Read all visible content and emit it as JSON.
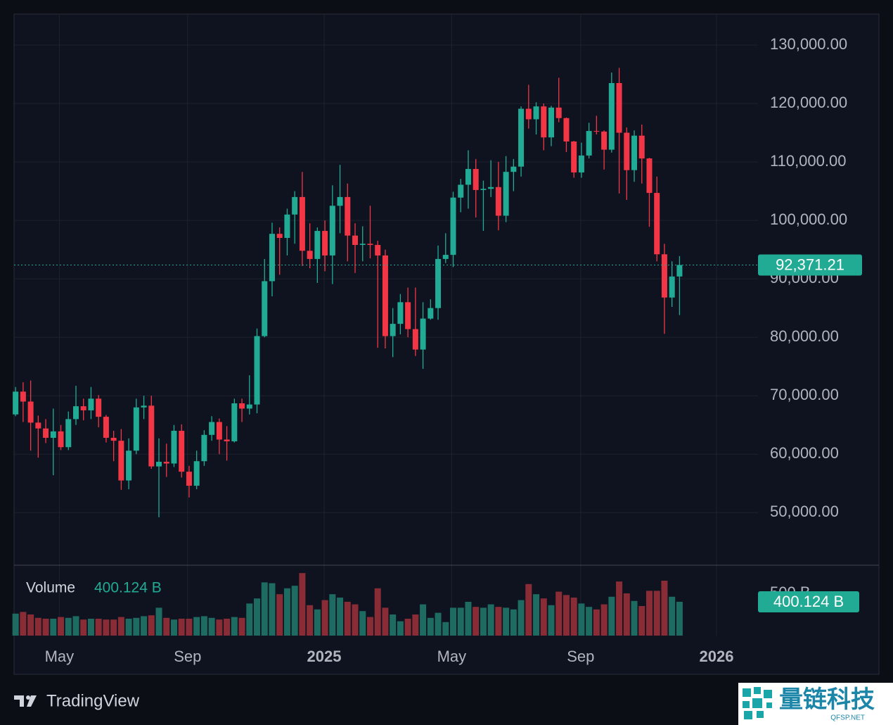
{
  "chart_data": {
    "type": "candlestick",
    "x": [
      0,
      1,
      2,
      3,
      4,
      5,
      6,
      7,
      8,
      9,
      10,
      11,
      12,
      13,
      14,
      15,
      16,
      17,
      18,
      19,
      20,
      21,
      22,
      23,
      24,
      25,
      26,
      27,
      28,
      29,
      30,
      31,
      32,
      33,
      34,
      35,
      36,
      37,
      38,
      39,
      40,
      41,
      42,
      43,
      44,
      45,
      46,
      47,
      48,
      49,
      50,
      51,
      52,
      53,
      54,
      55,
      56,
      57,
      58,
      59,
      60,
      61,
      62,
      63,
      64,
      65,
      66,
      67,
      68,
      69,
      70,
      71,
      72,
      73,
      74,
      75,
      76,
      77,
      78,
      79,
      80,
      81,
      82,
      83,
      84,
      85,
      86,
      87,
      88
    ],
    "open": [
      66800,
      70700,
      69000,
      65400,
      64400,
      62800,
      63900,
      61200,
      66000,
      68200,
      67500,
      69500,
      66400,
      62800,
      62300,
      55500,
      60600,
      68000,
      68300,
      57900,
      58700,
      58400,
      64000,
      57000,
      54600,
      58800,
      63300,
      65500,
      62500,
      62200,
      68700,
      67800,
      68500,
      80200,
      89600,
      97700,
      97000,
      101000,
      104000,
      94800,
      93400,
      98200,
      94000,
      102500,
      104000,
      97400,
      95800,
      96000,
      95800,
      94000,
      80200,
      82300,
      86000,
      81400,
      77900,
      83200,
      85000,
      93400,
      94100,
      103900,
      106100,
      108800,
      105200,
      105400,
      105700,
      100800,
      108300,
      109200,
      119100,
      117300,
      119500,
      114200,
      119300,
      117500,
      113500,
      108200,
      111100,
      115300,
      115200,
      112100,
      123500,
      115000,
      108600,
      114500,
      110600,
      104700,
      94200,
      86800,
      90400
    ],
    "high": [
      71500,
      72300,
      72600,
      66600,
      66000,
      67800,
      65000,
      67300,
      71700,
      69500,
      71500,
      70100,
      66700,
      64000,
      64300,
      62700,
      69500,
      70000,
      70000,
      62700,
      61800,
      65000,
      65100,
      58000,
      60600,
      64100,
      66500,
      66100,
      64800,
      69500,
      69500,
      73500,
      81500,
      93400,
      99600,
      98800,
      102000,
      105000,
      108300,
      99500,
      98800,
      100000,
      106000,
      109500,
      106300,
      99500,
      99000,
      102500,
      96500,
      95000,
      85000,
      87400,
      88500,
      88500,
      86000,
      86500,
      95700,
      97800,
      104900,
      107100,
      112000,
      110500,
      106800,
      110300,
      110000,
      111000,
      110500,
      119500,
      123200,
      120200,
      120000,
      119600,
      124400,
      117600,
      113600,
      113300,
      116700,
      117900,
      115400,
      125300,
      126100,
      115900,
      115400,
      116400,
      110700,
      107500,
      96000,
      93000,
      93900
    ],
    "low": [
      66500,
      65500,
      60600,
      59400,
      61900,
      56400,
      60700,
      60700,
      65000,
      65800,
      66000,
      64600,
      62000,
      58800,
      53900,
      54000,
      60000,
      66000,
      57500,
      49200,
      56100,
      57800,
      56000,
      52600,
      54000,
      58000,
      62300,
      60000,
      58900,
      62000,
      65500,
      66800,
      67000,
      80000,
      87000,
      90700,
      94000,
      96000,
      92200,
      91800,
      89300,
      91300,
      89100,
      97800,
      93000,
      91000,
      93000,
      93500,
      78200,
      78100,
      76600,
      80500,
      80000,
      76800,
      74600,
      83000,
      83000,
      92700,
      92000,
      101400,
      102000,
      100500,
      98200,
      104000,
      98300,
      99700,
      105000,
      107500,
      115700,
      114700,
      112000,
      112700,
      116800,
      111700,
      107300,
      107300,
      110600,
      114700,
      108700,
      111600,
      104600,
      103500,
      106600,
      106300,
      98900,
      93000,
      80600,
      85200,
      83800
    ],
    "close": [
      70700,
      69000,
      65400,
      64400,
      62800,
      63900,
      61200,
      66000,
      68200,
      67500,
      69500,
      66400,
      62800,
      62300,
      55500,
      60600,
      68000,
      68300,
      57900,
      58700,
      58400,
      64000,
      57000,
      54600,
      58800,
      63300,
      65500,
      62500,
      62200,
      68700,
      67800,
      68500,
      80200,
      89600,
      97700,
      97000,
      101000,
      104000,
      94800,
      93400,
      98200,
      94000,
      102500,
      104000,
      97400,
      95800,
      96000,
      95800,
      94000,
      80200,
      82300,
      86000,
      81400,
      77900,
      83200,
      85000,
      93400,
      94100,
      103900,
      106100,
      108800,
      105200,
      105400,
      105700,
      100800,
      108300,
      109200,
      119100,
      117300,
      119500,
      114200,
      119300,
      117500,
      113500,
      108200,
      111100,
      115300,
      115200,
      112100,
      123500,
      115000,
      108600,
      114500,
      110600,
      104700,
      94200,
      86800,
      90400,
      92371.21
    ],
    "last_label": "92,371.21",
    "up_color": "#22ab94",
    "down_color": "#f23645",
    "xlim": [
      -0.2,
      98.4
    ],
    "xticks": [
      {
        "value": 5.8,
        "label": "May"
      },
      {
        "value": 22.8,
        "label": "Sep"
      },
      {
        "value": 40.9,
        "label": "2025"
      },
      {
        "value": 57.8,
        "label": "May"
      },
      {
        "value": 74.9,
        "label": "Sep"
      },
      {
        "value": 92.9,
        "label": "2026"
      }
    ],
    "ylim": [
      41000,
      135300
    ],
    "yticks": [
      {
        "value": 50000,
        "label": "50,000.00"
      },
      {
        "value": 60000,
        "label": "60,000.00"
      },
      {
        "value": 70000,
        "label": "70,000.00"
      },
      {
        "value": 80000,
        "label": "80,000.00"
      },
      {
        "value": 90000,
        "label": "90,000.00"
      },
      {
        "value": 100000,
        "label": "100,000.00"
      },
      {
        "value": 110000,
        "label": "110,000.00"
      },
      {
        "value": 120000,
        "label": "120,000.00"
      },
      {
        "value": 130000,
        "label": "130,000.00"
      }
    ],
    "grid": true,
    "volume": {
      "name": "Volume",
      "values": [
        260,
        280,
        250,
        210,
        200,
        200,
        220,
        210,
        230,
        190,
        200,
        200,
        190,
        190,
        220,
        200,
        210,
        230,
        240,
        330,
        210,
        190,
        200,
        200,
        220,
        230,
        210,
        190,
        200,
        220,
        210,
        380,
        440,
        630,
        620,
        490,
        560,
        590,
        740,
        360,
        310,
        420,
        490,
        450,
        400,
        370,
        290,
        220,
        560,
        330,
        250,
        170,
        200,
        250,
        370,
        210,
        270,
        160,
        330,
        330,
        400,
        340,
        330,
        370,
        340,
        330,
        310,
        420,
        610,
        490,
        440,
        360,
        520,
        480,
        450,
        380,
        340,
        310,
        370,
        460,
        640,
        500,
        410,
        350,
        530,
        530,
        650,
        460,
        400.124
      ],
      "current_label": "400.124 B",
      "up_color": "#1d6b61",
      "down_color": "#8a2c36",
      "ylim": [
        0,
        833
      ],
      "yticks": [
        {
          "value": 500,
          "label": "500 B"
        }
      ]
    }
  },
  "footer": {
    "brand": "TradingView"
  },
  "watermark": {
    "name": "量链科技",
    "site": "QFSP.NET"
  }
}
